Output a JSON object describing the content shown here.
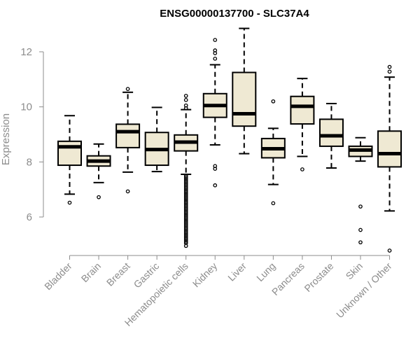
{
  "chart_data": {
    "type": "boxplot",
    "title": "ENSG00000137700 - SLC37A4",
    "xlabel": "",
    "ylabel": "Expression",
    "ylim": [
      4.6,
      13.0
    ],
    "yticks": [
      6,
      8,
      10,
      12
    ],
    "colors": {
      "box_fill": "#efe9d3",
      "box_stroke": "#000000",
      "median": "#000000",
      "axis": "#8c8c8c"
    },
    "categories": [
      "Bladder",
      "Brain",
      "Breast",
      "Gastric",
      "Hematopoietic cells",
      "Kidney",
      "Liver",
      "Lung",
      "Pancreas",
      "Prostate",
      "Skin",
      "Unknown / Other"
    ],
    "boxes": [
      {
        "category": "Bladder",
        "whisker_low": 6.83,
        "q1": 7.88,
        "median": 8.55,
        "q3": 8.75,
        "whisker_high": 9.68,
        "outliers": [
          6.52
        ]
      },
      {
        "category": "Brain",
        "whisker_low": 7.25,
        "q1": 7.85,
        "median": 8.03,
        "q3": 8.22,
        "whisker_high": 8.65,
        "outliers": [
          6.72
        ]
      },
      {
        "category": "Breast",
        "whisker_low": 7.63,
        "q1": 8.52,
        "median": 9.1,
        "q3": 9.37,
        "whisker_high": 10.53,
        "outliers": [
          6.93,
          10.65
        ]
      },
      {
        "category": "Gastric",
        "whisker_low": 7.65,
        "q1": 7.88,
        "median": 8.45,
        "q3": 9.07,
        "whisker_high": 9.98,
        "outliers": []
      },
      {
        "category": "Hematopoietic cells",
        "whisker_low": 7.55,
        "q1": 8.4,
        "median": 8.72,
        "q3": 8.98,
        "whisker_high": 9.9,
        "outliers": [
          10.4,
          10.25,
          10.05,
          9.95,
          7.5,
          7.45,
          7.4,
          7.35,
          7.3,
          7.25,
          7.2,
          7.15,
          7.1,
          7.05,
          7.0,
          6.95,
          6.9,
          6.85,
          6.8,
          6.75,
          6.7,
          6.65,
          6.6,
          6.55,
          6.5,
          6.45,
          6.4,
          6.35,
          6.3,
          6.25,
          6.2,
          6.15,
          6.1,
          6.05,
          6.0,
          5.95,
          5.9,
          5.85,
          5.8,
          5.75,
          5.7,
          5.65,
          5.6,
          5.55,
          5.5,
          5.45,
          5.4,
          5.35,
          5.3,
          5.25,
          5.2,
          5.15,
          5.1,
          5.05,
          4.95
        ]
      },
      {
        "category": "Kidney",
        "whisker_low": 8.62,
        "q1": 9.62,
        "median": 10.05,
        "q3": 10.48,
        "whisker_high": 11.53,
        "outliers": [
          12.43,
          12.05,
          11.95,
          11.75,
          7.85,
          7.75,
          7.15
        ]
      },
      {
        "category": "Liver",
        "whisker_low": 8.3,
        "q1": 9.3,
        "median": 9.75,
        "q3": 11.25,
        "whisker_high": 12.85,
        "outliers": []
      },
      {
        "category": "Lung",
        "whisker_low": 7.18,
        "q1": 8.15,
        "median": 8.48,
        "q3": 8.85,
        "whisker_high": 9.22,
        "outliers": [
          10.2,
          6.5
        ]
      },
      {
        "category": "Pancreas",
        "whisker_low": 8.2,
        "q1": 9.38,
        "median": 10.02,
        "q3": 10.38,
        "whisker_high": 11.03,
        "outliers": [
          7.73
        ]
      },
      {
        "category": "Prostate",
        "whisker_low": 7.78,
        "q1": 8.57,
        "median": 8.95,
        "q3": 9.55,
        "whisker_high": 10.12,
        "outliers": []
      },
      {
        "category": "Skin",
        "whisker_low": 8.03,
        "q1": 8.2,
        "median": 8.43,
        "q3": 8.57,
        "whisker_high": 8.88,
        "outliers": [
          6.38,
          5.53,
          5.08
        ]
      },
      {
        "category": "Unknown / Other",
        "whisker_low": 6.22,
        "q1": 7.82,
        "median": 8.3,
        "q3": 9.12,
        "whisker_high": 11.08,
        "outliers": [
          11.45,
          11.28,
          4.78
        ]
      }
    ]
  }
}
